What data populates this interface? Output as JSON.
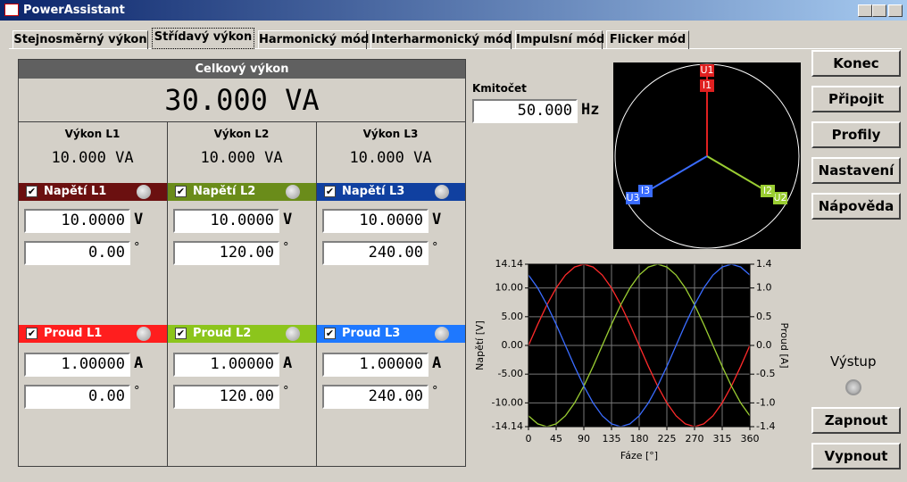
{
  "window": {
    "title": "PowerAssistant"
  },
  "tabs": [
    "Stejnosměrný výkon",
    "Střídavý výkon",
    "Harmonický mód",
    "Interharmonický mód",
    "Impulsní mód",
    "Flicker mód"
  ],
  "active_tab": 1,
  "total": {
    "label": "Celkový výkon",
    "value": "30.000",
    "unit": "VA"
  },
  "phases": [
    {
      "power_label": "Výkon L1",
      "power": "10.000 VA",
      "voltage": {
        "label": "Napětí L1",
        "checked": true,
        "magnitude": "10.0000",
        "magnitude_unit": "V",
        "angle": "0.00",
        "angle_unit": "°"
      },
      "current": {
        "label": "Proud L1",
        "checked": true,
        "magnitude": "1.00000",
        "magnitude_unit": "A",
        "angle": "0.00",
        "angle_unit": "°"
      }
    },
    {
      "power_label": "Výkon L2",
      "power": "10.000 VA",
      "voltage": {
        "label": "Napětí L2",
        "checked": true,
        "magnitude": "10.0000",
        "magnitude_unit": "V",
        "angle": "120.00",
        "angle_unit": "°"
      },
      "current": {
        "label": "Proud L2",
        "checked": true,
        "magnitude": "1.00000",
        "magnitude_unit": "A",
        "angle": "120.00",
        "angle_unit": "°"
      }
    },
    {
      "power_label": "Výkon L3",
      "power": "10.000 VA",
      "voltage": {
        "label": "Napětí L3",
        "checked": true,
        "magnitude": "10.0000",
        "magnitude_unit": "V",
        "angle": "240.00",
        "angle_unit": "°"
      },
      "current": {
        "label": "Proud L3",
        "checked": true,
        "magnitude": "1.00000",
        "magnitude_unit": "A",
        "angle": "240.00",
        "angle_unit": "°"
      }
    }
  ],
  "frequency": {
    "label": "Kmitočet",
    "value": "50.000",
    "unit": "Hz"
  },
  "phasor_labels": [
    "U1",
    "I1",
    "U2",
    "I2",
    "U3",
    "I3"
  ],
  "chart_data": {
    "type": "line",
    "x": [
      0,
      15,
      30,
      45,
      60,
      75,
      90,
      105,
      120,
      135,
      150,
      165,
      180,
      195,
      210,
      225,
      240,
      255,
      270,
      285,
      300,
      315,
      330,
      345,
      360
    ],
    "series": [
      {
        "color": "#ff2a2a",
        "values": [
          0,
          3.66,
          7.07,
          10,
          12.25,
          13.66,
          14.14,
          13.66,
          12.25,
          10,
          7.07,
          3.66,
          0,
          -3.66,
          -7.07,
          -10,
          -12.25,
          -13.66,
          -14.14,
          -13.66,
          -12.25,
          -10,
          -7.07,
          -3.66,
          0
        ]
      },
      {
        "color": "#9acd32",
        "values": [
          -12.25,
          -13.66,
          -14.14,
          -13.66,
          -12.25,
          -10,
          -7.07,
          -3.66,
          0,
          3.66,
          7.07,
          10,
          12.25,
          13.66,
          14.14,
          13.66,
          12.25,
          10,
          7.07,
          3.66,
          0,
          -3.66,
          -7.07,
          -10,
          -12.25
        ]
      },
      {
        "color": "#3a6cff",
        "values": [
          12.25,
          10,
          7.07,
          3.66,
          0,
          -3.66,
          -7.07,
          -10,
          -12.25,
          -13.66,
          -14.14,
          -13.66,
          -12.25,
          -10,
          -7.07,
          -3.66,
          0,
          3.66,
          7.07,
          10,
          12.25,
          13.66,
          14.14,
          13.66,
          12.25
        ]
      }
    ],
    "xlim": [
      0,
      360
    ],
    "xticks": [
      0,
      45,
      90,
      135,
      180,
      225,
      270,
      315,
      360
    ],
    "ylim": [
      -14.14,
      14.14
    ],
    "yticks": [
      {
        "value": 14.14,
        "label": "14.14"
      },
      {
        "value": 10,
        "label": "10.00"
      },
      {
        "value": 5,
        "label": "5.00"
      },
      {
        "value": 0,
        "label": "0.00"
      },
      {
        "value": -5,
        "label": "-5.00"
      },
      {
        "value": -10,
        "label": "-10.00"
      },
      {
        "value": -14.14,
        "label": "-14.14"
      }
    ],
    "y2lim": [
      -1.414,
      1.414
    ],
    "y2ticks": [
      {
        "value": 1.414,
        "label": "1.4"
      },
      {
        "value": 1,
        "label": "1.0"
      },
      0.5,
      {
        "value": 0,
        "label": "0.0"
      },
      -0.5,
      {
        "value": -1,
        "label": "-1.0"
      },
      {
        "value": -1.414,
        "label": "-1.4"
      }
    ],
    "xlabel": "Fáze [°]",
    "ylabel": "Napětí [V]",
    "y2label": "Proud [A]",
    "grid": true
  },
  "buttons": [
    "Konec",
    "Připojit",
    "Profily",
    "Nastavení",
    "Nápověda"
  ],
  "output": {
    "label": "Výstup",
    "buttons": [
      "Zapnout",
      "Vypnout"
    ]
  }
}
